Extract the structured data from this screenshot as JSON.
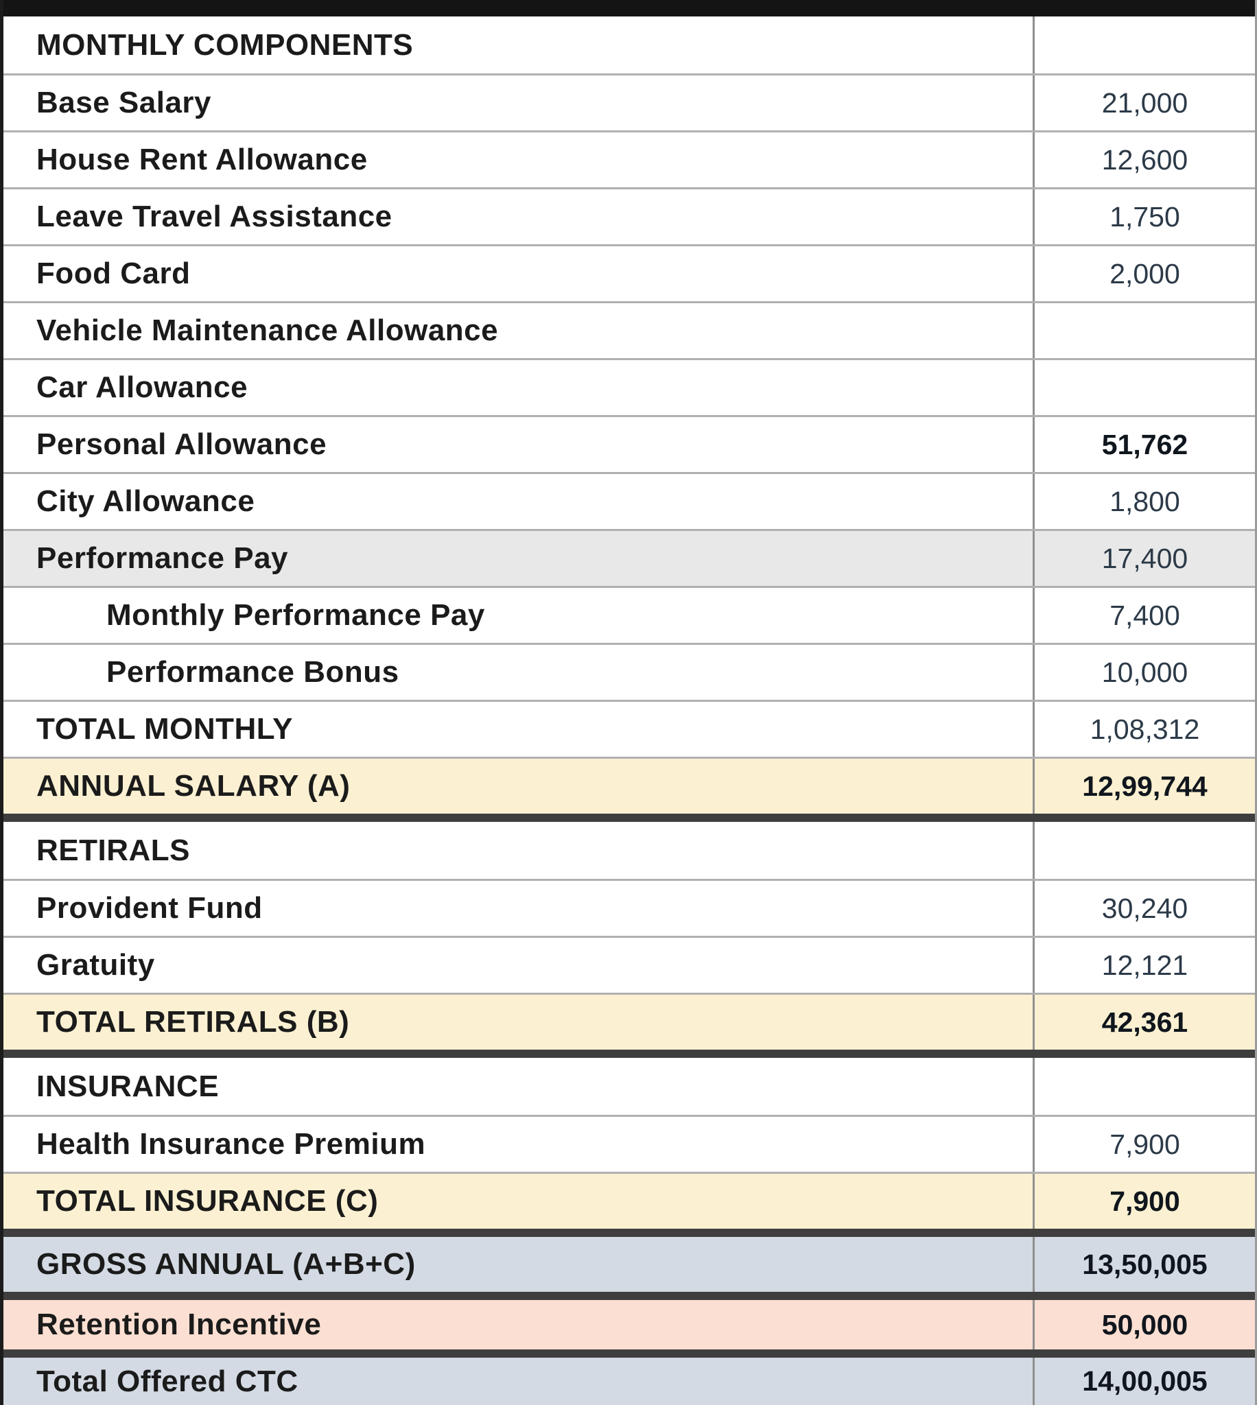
{
  "document": {
    "type": "salary-structure-table",
    "columns": {
      "label_header": "",
      "value_header": ""
    }
  },
  "colors": {
    "row_gray": "#e8e8e8",
    "row_cream": "#fbf1d2",
    "row_blue_gray": "#d4dae3",
    "row_salmon": "#fbdfd2",
    "border_black": "#141414",
    "border_thick_sep": "#3e3e3e",
    "border_row_line": "#b0b0b0",
    "border_divider": "#8f8f8f",
    "label_text": "#1b1b1b",
    "value_text": "#2c3a48",
    "value_text_bold": "#10161d"
  },
  "rows": [
    {
      "label": "MONTHLY COMPONENTS",
      "value": "",
      "bg": "white",
      "value_bold": false,
      "indent": false,
      "thick_after": false
    },
    {
      "label": "Base Salary",
      "value": "21,000",
      "bg": "white",
      "value_bold": false,
      "indent": false,
      "thick_after": false
    },
    {
      "label": "House Rent Allowance",
      "value": "12,600",
      "bg": "white",
      "value_bold": false,
      "indent": false,
      "thick_after": false
    },
    {
      "label": "Leave Travel Assistance",
      "value": "1,750",
      "bg": "white",
      "value_bold": false,
      "indent": false,
      "thick_after": false
    },
    {
      "label": "Food Card",
      "value": "2,000",
      "bg": "white",
      "value_bold": false,
      "indent": false,
      "thick_after": false
    },
    {
      "label": "Vehicle Maintenance Allowance",
      "value": "",
      "bg": "white",
      "value_bold": false,
      "indent": false,
      "thick_after": false
    },
    {
      "label": "Car Allowance",
      "value": "",
      "bg": "white",
      "value_bold": false,
      "indent": false,
      "thick_after": false
    },
    {
      "label": "Personal Allowance",
      "value": "51,762",
      "bg": "white",
      "value_bold": true,
      "indent": false,
      "thick_after": false
    },
    {
      "label": "City Allowance",
      "value": "1,800",
      "bg": "white",
      "value_bold": false,
      "indent": false,
      "thick_after": false
    },
    {
      "label": "Performance Pay",
      "value": "17,400",
      "bg": "gray",
      "value_bold": false,
      "indent": false,
      "thick_after": false
    },
    {
      "label": "Monthly Performance Pay",
      "value": "7,400",
      "bg": "white",
      "value_bold": false,
      "indent": true,
      "thick_after": false
    },
    {
      "label": "Performance Bonus",
      "value": "10,000",
      "bg": "white",
      "value_bold": false,
      "indent": true,
      "thick_after": false
    },
    {
      "label": "TOTAL MONTHLY",
      "value": "1,08,312",
      "bg": "white",
      "value_bold": false,
      "indent": false,
      "thick_after": false
    },
    {
      "label": "ANNUAL SALARY (A)",
      "value": "12,99,744",
      "bg": "cream",
      "value_bold": true,
      "indent": false,
      "thick_after": true
    },
    {
      "label": "RETIRALS",
      "value": "",
      "bg": "white",
      "value_bold": false,
      "indent": false,
      "thick_after": false
    },
    {
      "label": "Provident Fund",
      "value": "30,240",
      "bg": "white",
      "value_bold": false,
      "indent": false,
      "thick_after": false
    },
    {
      "label": "Gratuity",
      "value": "12,121",
      "bg": "white",
      "value_bold": false,
      "indent": false,
      "thick_after": false
    },
    {
      "label": "TOTAL RETIRALS (B)",
      "value": "42,361",
      "bg": "cream",
      "value_bold": true,
      "indent": false,
      "thick_after": true
    },
    {
      "label": "INSURANCE",
      "value": "",
      "bg": "white",
      "value_bold": false,
      "indent": false,
      "thick_after": false
    },
    {
      "label": "Health Insurance Premium",
      "value": "7,900",
      "bg": "white",
      "value_bold": false,
      "indent": false,
      "thick_after": false
    },
    {
      "label": "TOTAL INSURANCE (C)",
      "value": "7,900",
      "bg": "cream",
      "value_bold": true,
      "indent": false,
      "thick_after": true
    },
    {
      "label": "GROSS ANNUAL (A+B+C)",
      "value": "13,50,005",
      "bg": "blue",
      "value_bold": true,
      "indent": false,
      "thick_after": true,
      "h": 80
    },
    {
      "label": "Retention Incentive",
      "value": "50,000",
      "bg": "salmon",
      "value_bold": true,
      "indent": false,
      "thick_after": true,
      "h": 72
    },
    {
      "label": "Total Offered CTC",
      "value": "14,00,005",
      "bg": "blue",
      "value_bold": true,
      "indent": false,
      "thick_after": false,
      "h": 69
    }
  ]
}
